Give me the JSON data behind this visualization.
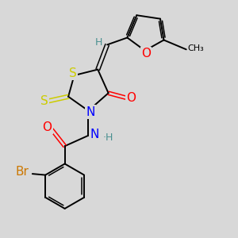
{
  "bg_color": "#d8d8d8",
  "atom_colors": {
    "S": "#cccc00",
    "N": "#0000ff",
    "O": "#ff0000",
    "Br": "#cc7700",
    "C": "#000000",
    "H": "#4a9090"
  },
  "font_size_atoms": 11,
  "font_size_small": 9,
  "fig_size": [
    3.0,
    3.0
  ],
  "dpi": 100
}
